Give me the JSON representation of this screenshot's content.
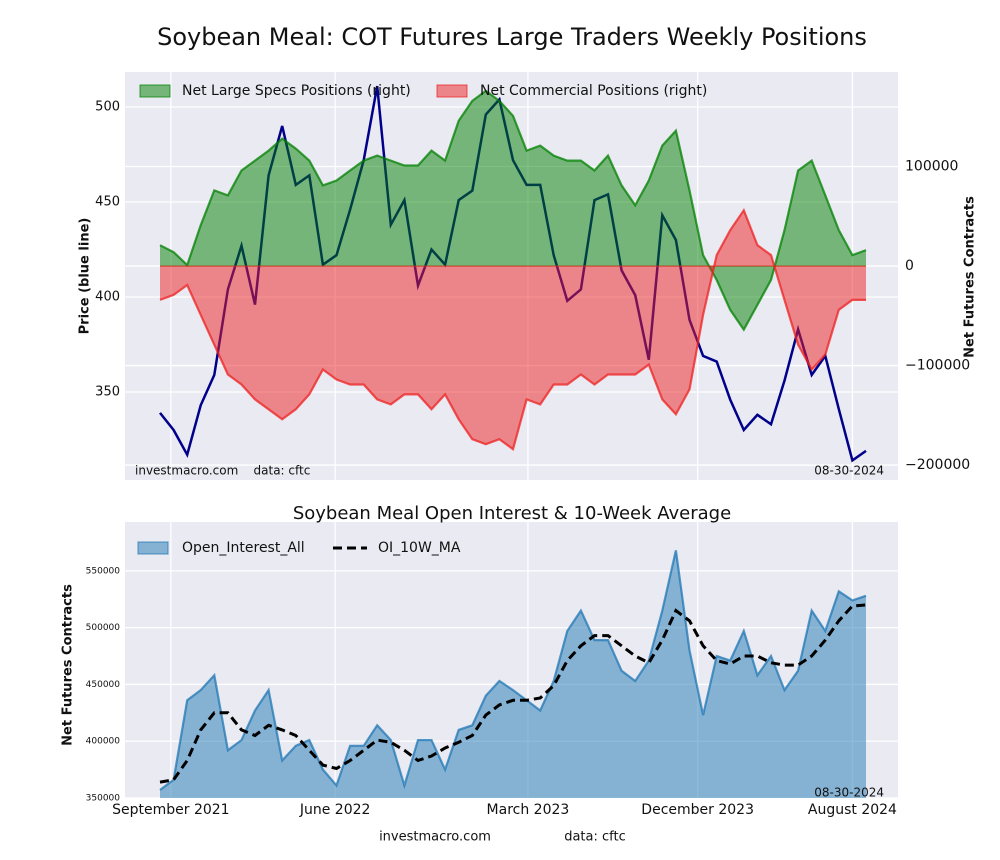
{
  "title": "Soybean Meal: COT Futures Large Traders Weekly Positions",
  "footer": [
    "investmacro.com",
    "data: cftc"
  ],
  "chart_data": [
    {
      "type": "line",
      "ylabel": "Price (blue line)",
      "y2label": "Net Futures Contracts",
      "annotations": [
        "investmacro.com    data: cftc",
        "08-30-2024"
      ],
      "xlim": [
        0,
        52
      ],
      "xticks": [
        {
          "value": 0.8,
          "label": "September 2021"
        },
        {
          "value": 12.9,
          "label": "June 2022"
        },
        {
          "value": 27.1,
          "label": "March 2023"
        },
        {
          "value": 39.6,
          "label": "December 2023"
        },
        {
          "value": 51,
          "label": "August 2024"
        }
      ],
      "ylim": [
        303.7,
        518.4
      ],
      "yticks": [
        350,
        400,
        450,
        500
      ],
      "y2lim": [
        -215000,
        195000
      ],
      "y2ticks": [
        {
          "value": -200000,
          "label": "−200000"
        },
        {
          "value": -100000,
          "label": "−100000"
        },
        0,
        100000
      ],
      "grid": true,
      "legend": "upper left",
      "series": [
        {
          "style": "line",
          "axis": "y",
          "color": "#00008b",
          "values": [
            339,
            330,
            317,
            343,
            359,
            404,
            427,
            396,
            464,
            490,
            459,
            464,
            417,
            422,
            446,
            472,
            511,
            438,
            451,
            406,
            425,
            417,
            451,
            456,
            496,
            504,
            472,
            459,
            459,
            422,
            398,
            404,
            451,
            454,
            414,
            401,
            367,
            443,
            430,
            388,
            369,
            366,
            346,
            330,
            338,
            333,
            356,
            383,
            359,
            369,
            341,
            314,
            319
          ]
        },
        {
          "name": "Net Large Specs Positions (right)",
          "style": "area",
          "axis": "y2",
          "color": "#008000",
          "values": [
            21000,
            14000,
            1000,
            41000,
            76000,
            71000,
            96000,
            106000,
            116000,
            128000,
            118000,
            106000,
            81000,
            86000,
            96000,
            106000,
            111000,
            106000,
            101000,
            101000,
            116000,
            106000,
            146000,
            166000,
            176000,
            166000,
            151000,
            116000,
            121000,
            111000,
            106000,
            106000,
            96000,
            111000,
            81000,
            61000,
            86000,
            121000,
            136000,
            76000,
            11000,
            -14000,
            -44000,
            -64000,
            -39000,
            -14000,
            36000,
            96000,
            106000,
            71000,
            36000,
            11000,
            16000
          ]
        },
        {
          "name": "Net Commercial Positions (right)",
          "style": "area",
          "axis": "y2",
          "color": "#ee2020",
          "values": [
            -34000,
            -29000,
            -19000,
            -49000,
            -79000,
            -109000,
            -119000,
            -134000,
            -144000,
            -154000,
            -144000,
            -129000,
            -104000,
            -114000,
            -119000,
            -119000,
            -134000,
            -139000,
            -129000,
            -129000,
            -144000,
            -129000,
            -154000,
            -174000,
            -179000,
            -174000,
            -184000,
            -134000,
            -139000,
            -119000,
            -119000,
            -109000,
            -119000,
            -109000,
            -109000,
            -109000,
            -99000,
            -134000,
            -149000,
            -124000,
            -49000,
            11000,
            36000,
            56000,
            21000,
            11000,
            -34000,
            -79000,
            -104000,
            -89000,
            -44000,
            -34000,
            -34000
          ]
        }
      ]
    },
    {
      "type": "line",
      "title": "Soybean Meal Open Interest & 10-Week Average",
      "ylabel": "Net Futures Contracts",
      "annotations": [
        "08-30-2024"
      ],
      "xlim": [
        0,
        52
      ],
      "xticks": [
        {
          "value": 0.8,
          "label": "September 2021"
        },
        {
          "value": 12.9,
          "label": "June 2022"
        },
        {
          "value": 27.1,
          "label": "March 2023"
        },
        {
          "value": 39.6,
          "label": "December 2023"
        },
        {
          "value": 51,
          "label": "August 2024"
        }
      ],
      "ylim": [
        350000,
        593000
      ],
      "yticks": [
        350000,
        400000,
        450000,
        500000,
        550000
      ],
      "grid": true,
      "legend": "upper left",
      "series": [
        {
          "name": "Open_Interest_All",
          "style": "area",
          "axis": "y",
          "color": "#1f77b4",
          "values": [
            357000,
            366000,
            436000,
            445000,
            458000,
            392000,
            401000,
            427000,
            445000,
            383000,
            396000,
            401000,
            375000,
            361000,
            396000,
            396000,
            414000,
            401000,
            361000,
            401000,
            401000,
            375000,
            410000,
            414000,
            440000,
            453000,
            445000,
            436000,
            427000,
            453000,
            497000,
            515000,
            489000,
            489000,
            462000,
            453000,
            471000,
            515000,
            568000,
            480000,
            423000,
            475000,
            471000,
            497000,
            458000,
            475000,
            445000,
            462000,
            515000,
            497000,
            532000,
            524000,
            528000
          ]
        },
        {
          "name": "OI_10W_MA",
          "style": "dashed",
          "axis": "y",
          "color": "#000000",
          "values": [
            364000,
            366000,
            383000,
            410000,
            425000,
            425000,
            410000,
            405000,
            414000,
            410000,
            405000,
            392000,
            379000,
            376000,
            383000,
            392000,
            401000,
            399000,
            392000,
            383000,
            387000,
            394000,
            399000,
            405000,
            423000,
            432000,
            436000,
            436000,
            438000,
            449000,
            471000,
            484000,
            493000,
            493000,
            484000,
            475000,
            469000,
            489000,
            515000,
            506000,
            484000,
            471000,
            468000,
            475000,
            475000,
            469000,
            467000,
            467000,
            475000,
            489000,
            506000,
            519000,
            520000
          ]
        }
      ]
    }
  ]
}
